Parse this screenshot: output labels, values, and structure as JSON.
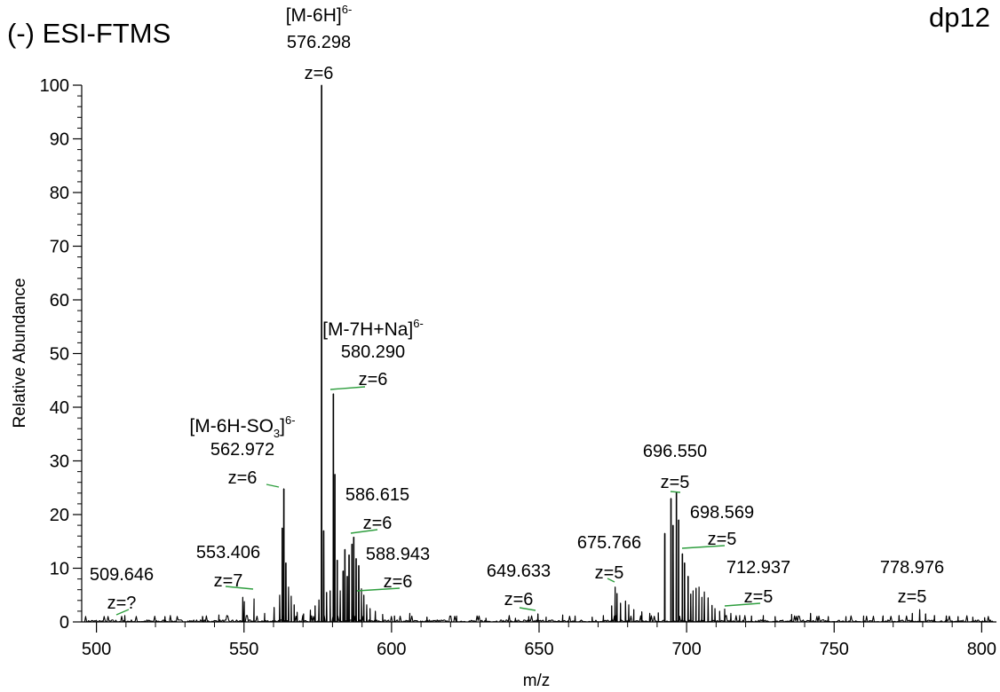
{
  "chart_data": {
    "type": "line",
    "title": "(-) ESI-FTMS",
    "title_right": "dp12",
    "xlabel": "m/z",
    "ylabel": "Relative Abundance",
    "xlim": [
      495,
      805
    ],
    "ylim": [
      0,
      100
    ],
    "x_ticks": [
      500,
      550,
      600,
      650,
      700,
      750,
      800
    ],
    "y_ticks": [
      0,
      10,
      20,
      30,
      40,
      50,
      60,
      70,
      80,
      90,
      100
    ],
    "grid": false,
    "peaks": [
      [
        509.6,
        1.2
      ],
      [
        523.2,
        1.0
      ],
      [
        536.0,
        1.0
      ],
      [
        541.5,
        1.3
      ],
      [
        549.6,
        4.6
      ],
      [
        550.1,
        3.8
      ],
      [
        553.4,
        4.3
      ],
      [
        557.0,
        1.6
      ],
      [
        560.2,
        2.7
      ],
      [
        562.1,
        5.0
      ],
      [
        562.97,
        17.5
      ],
      [
        563.5,
        24.8
      ],
      [
        564.2,
        11.0
      ],
      [
        565.1,
        6.5
      ],
      [
        566.0,
        4.8
      ],
      [
        567.0,
        3.2
      ],
      [
        568.0,
        1.8
      ],
      [
        570.2,
        1.5
      ],
      [
        572.5,
        2.2
      ],
      [
        574.1,
        3.0
      ],
      [
        575.4,
        4.1
      ],
      [
        576.298,
        100.0
      ],
      [
        577.0,
        17.0
      ],
      [
        578.0,
        5.5
      ],
      [
        579.2,
        5.8
      ],
      [
        580.29,
        42.5
      ],
      [
        580.8,
        27.5
      ],
      [
        581.6,
        11.5
      ],
      [
        582.6,
        5.8
      ],
      [
        583.6,
        9.5
      ],
      [
        584.2,
        13.5
      ],
      [
        585.0,
        8.5
      ],
      [
        585.6,
        12.5
      ],
      [
        586.6,
        14.5
      ],
      [
        587.2,
        15.8
      ],
      [
        588.0,
        11.8
      ],
      [
        588.9,
        10.5
      ],
      [
        589.8,
        6.2
      ],
      [
        590.6,
        5.0
      ],
      [
        591.6,
        3.2
      ],
      [
        592.7,
        2.5
      ],
      [
        594.5,
        2.0
      ],
      [
        597.0,
        1.4
      ],
      [
        601.0,
        1.1
      ],
      [
        606.2,
        1.6
      ],
      [
        612.0,
        0.9
      ],
      [
        622.0,
        0.8
      ],
      [
        632.0,
        0.7
      ],
      [
        642.0,
        0.7
      ],
      [
        646.5,
        1.0
      ],
      [
        649.6,
        1.5
      ],
      [
        652.4,
        0.9
      ],
      [
        658.0,
        1.3
      ],
      [
        662.2,
        1.1
      ],
      [
        668.0,
        0.9
      ],
      [
        671.8,
        1.2
      ],
      [
        674.6,
        3.0
      ],
      [
        675.77,
        6.5
      ],
      [
        676.4,
        5.3
      ],
      [
        677.6,
        3.5
      ],
      [
        679.3,
        3.9
      ],
      [
        680.4,
        3.2
      ],
      [
        682.1,
        2.3
      ],
      [
        684.8,
        1.9
      ],
      [
        687.5,
        1.6
      ],
      [
        690.4,
        1.7
      ],
      [
        692.6,
        16.5
      ],
      [
        694.7,
        23.0
      ],
      [
        695.4,
        18.0
      ],
      [
        696.55,
        24.2
      ],
      [
        697.3,
        19.0
      ],
      [
        698.57,
        12.7
      ],
      [
        699.3,
        11.0
      ],
      [
        700.5,
        8.5
      ],
      [
        701.4,
        5.2
      ],
      [
        702.2,
        5.8
      ],
      [
        703.2,
        6.3
      ],
      [
        704.2,
        6.5
      ],
      [
        705.2,
        4.6
      ],
      [
        706.0,
        5.6
      ],
      [
        707.3,
        4.5
      ],
      [
        708.6,
        3.1
      ],
      [
        709.6,
        2.5
      ],
      [
        711.2,
        2.0
      ],
      [
        712.9,
        2.4
      ],
      [
        715.0,
        1.6
      ],
      [
        718.0,
        1.2
      ],
      [
        722.0,
        1.1
      ],
      [
        726.0,
        1.2
      ],
      [
        730.0,
        1.0
      ],
      [
        735.6,
        1.4
      ],
      [
        742.0,
        1.6
      ],
      [
        748.0,
        1.0
      ],
      [
        754.0,
        1.0
      ],
      [
        760.0,
        1.1
      ],
      [
        766.5,
        1.0
      ],
      [
        772.0,
        1.2
      ],
      [
        776.5,
        1.6
      ],
      [
        778.98,
        2.3
      ],
      [
        781.0,
        1.5
      ],
      [
        784.0,
        1.2
      ],
      [
        788.0,
        1.1
      ],
      [
        792.0,
        1.0
      ],
      [
        797.0,
        0.9
      ],
      [
        801.0,
        0.8
      ]
    ],
    "annotations": [
      {
        "mz": "509.646",
        "z": "z=?"
      },
      {
        "mz": "553.406",
        "z": "z=7"
      },
      {
        "ion": "[M-6H-SO",
        "ion_sub": "3",
        "ion_end": "]",
        "ion_sup": "6-",
        "mz": "562.972",
        "z": "z=6"
      },
      {
        "ion": "[M-6H]",
        "ion_sup": "6-",
        "mz": "576.298",
        "z": "z=6"
      },
      {
        "ion": "[M-7H+Na]",
        "ion_sup": "6-",
        "mz": "580.290",
        "z": "z=6"
      },
      {
        "mz": "586.615",
        "z": "z=6"
      },
      {
        "mz": "588.943",
        "z": "z=6"
      },
      {
        "mz": "649.633",
        "z": "z=6"
      },
      {
        "mz": "675.766",
        "z": "z=5"
      },
      {
        "mz": "696.550",
        "z": "z=5"
      },
      {
        "mz": "698.569",
        "z": "z=5"
      },
      {
        "mz": "712.937",
        "z": "z=5"
      },
      {
        "mz": "778.976",
        "z": "z=5"
      }
    ],
    "colors": {
      "spectrum": "#000000",
      "marker": "#2e9e3e"
    }
  }
}
